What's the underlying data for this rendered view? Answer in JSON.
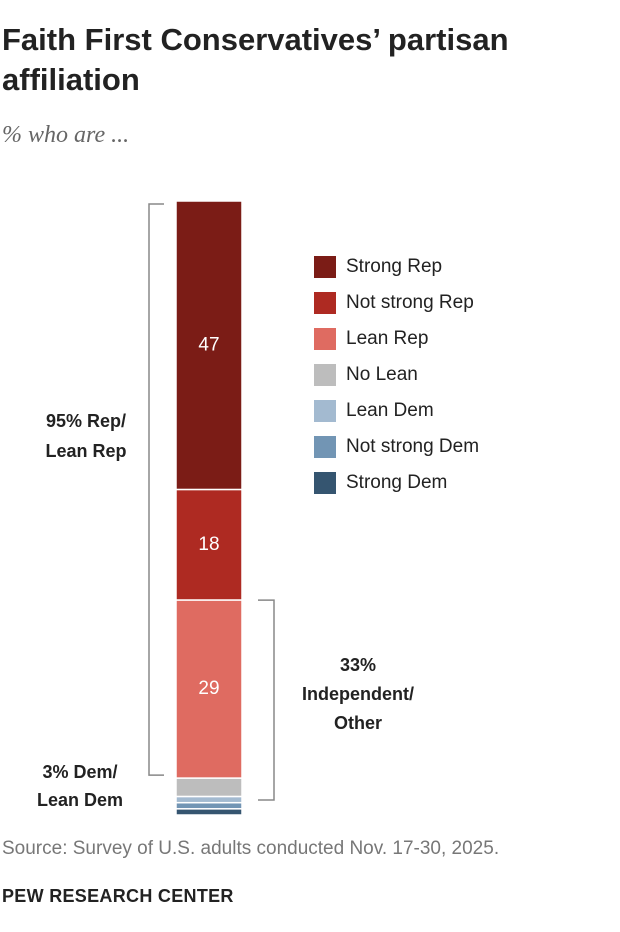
{
  "chart_data": {
    "type": "stacked_bar",
    "title": "Faith First Conservatives’ partisan affiliation",
    "subtitle": "% who are ...",
    "series": [
      {
        "name": "Strong Rep",
        "color": "#7b1c16",
        "values": [
          47
        ]
      },
      {
        "name": "Not strong Rep",
        "color": "#ae2a22",
        "values": [
          18
        ]
      },
      {
        "name": "Lean Rep",
        "color": "#df6b61",
        "values": [
          29
        ]
      },
      {
        "name": "No Lean",
        "color": "#bdbdbd",
        "values": [
          3
        ]
      },
      {
        "name": "Lean Dem",
        "color": "#a3bad0",
        "values": [
          1
        ]
      },
      {
        "name": "Not strong Dem",
        "color": "#7295b4",
        "values": [
          1
        ]
      },
      {
        "name": "Strong Dem",
        "color": "#355570",
        "values": [
          1
        ]
      }
    ],
    "ylim": [
      0,
      100
    ],
    "annotations": [
      [
        "95% Rep/",
        "Lean Rep"
      ],
      [
        "33%",
        "Independent/",
        "Other"
      ],
      [
        "3% Dem/",
        "Lean Dem"
      ]
    ],
    "source": "Source: Survey of U.S. adults conducted Nov. 17-30, 2025.",
    "credit": "PEW RESEARCH CENTER"
  }
}
